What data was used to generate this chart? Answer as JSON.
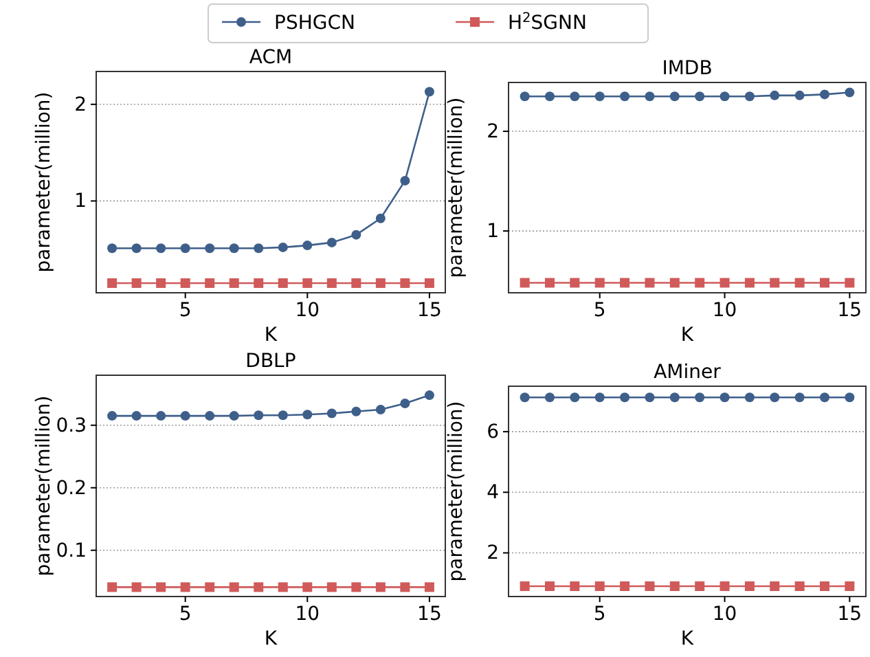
{
  "chart_data": [
    {
      "type": "line",
      "title": "ACM",
      "xlabel": "K",
      "ylabel": "parameter(million)",
      "x": [
        2,
        3,
        4,
        5,
        6,
        7,
        8,
        9,
        10,
        11,
        12,
        13,
        14,
        15
      ],
      "xlim": [
        1.35,
        15.65
      ],
      "xticks": [
        5,
        10,
        15
      ],
      "ylim": [
        0.05,
        2.34
      ],
      "yticks": [
        1,
        2
      ],
      "grid": "y",
      "legend": "top",
      "series": [
        {
          "name": "PSHGCN",
          "color": "#3e5f8a",
          "marker": "circle",
          "values": [
            0.51,
            0.51,
            0.51,
            0.51,
            0.51,
            0.51,
            0.51,
            0.52,
            0.54,
            0.57,
            0.65,
            0.82,
            1.21,
            2.13
          ]
        },
        {
          "name": "H$^{2}$SGNN",
          "color": "#d05a5a",
          "marker": "square",
          "values": [
            0.15,
            0.15,
            0.15,
            0.15,
            0.15,
            0.15,
            0.15,
            0.15,
            0.15,
            0.15,
            0.15,
            0.15,
            0.15,
            0.15
          ]
        }
      ]
    },
    {
      "type": "line",
      "title": "IMDB",
      "xlabel": "K",
      "ylabel": "parameter(million)",
      "x": [
        2,
        3,
        4,
        5,
        6,
        7,
        8,
        9,
        10,
        11,
        12,
        13,
        14,
        15
      ],
      "xlim": [
        1.35,
        15.65
      ],
      "xticks": [
        5,
        10,
        15
      ],
      "ylim": [
        0.38,
        2.49
      ],
      "yticks": [
        1,
        2
      ],
      "grid": "y",
      "series": [
        {
          "color": "#3e5f8a",
          "marker": "circle",
          "values": [
            2.35,
            2.35,
            2.35,
            2.35,
            2.35,
            2.35,
            2.35,
            2.35,
            2.35,
            2.35,
            2.36,
            2.36,
            2.37,
            2.39
          ]
        },
        {
          "color": "#d05a5a",
          "marker": "square",
          "values": [
            0.48,
            0.48,
            0.48,
            0.48,
            0.48,
            0.48,
            0.48,
            0.48,
            0.48,
            0.48,
            0.48,
            0.48,
            0.48,
            0.48
          ]
        }
      ]
    },
    {
      "type": "line",
      "title": "DBLP",
      "xlabel": "K",
      "ylabel": "parameter(million)",
      "x": [
        2,
        3,
        4,
        5,
        6,
        7,
        8,
        9,
        10,
        11,
        12,
        13,
        14,
        15
      ],
      "xlim": [
        1.35,
        15.65
      ],
      "xticks": [
        5,
        10,
        15
      ],
      "ylim": [
        0.026,
        0.38
      ],
      "yticks": [
        0.1,
        0.2,
        0.3
      ],
      "grid": "y",
      "series": [
        {
          "color": "#3e5f8a",
          "marker": "circle",
          "values": [
            0.315,
            0.315,
            0.315,
            0.315,
            0.315,
            0.315,
            0.316,
            0.316,
            0.317,
            0.319,
            0.322,
            0.325,
            0.335,
            0.348
          ]
        },
        {
          "color": "#d05a5a",
          "marker": "square",
          "values": [
            0.041,
            0.041,
            0.041,
            0.041,
            0.041,
            0.041,
            0.041,
            0.041,
            0.041,
            0.041,
            0.041,
            0.041,
            0.041,
            0.041
          ]
        }
      ]
    },
    {
      "type": "line",
      "title": "AMiner",
      "xlabel": "K",
      "ylabel": "parameter(million)",
      "x": [
        2,
        3,
        4,
        5,
        6,
        7,
        8,
        9,
        10,
        11,
        12,
        13,
        14,
        15
      ],
      "xlim": [
        1.35,
        15.65
      ],
      "xticks": [
        5,
        10,
        15
      ],
      "ylim": [
        0.56,
        7.5
      ],
      "yticks": [
        2,
        4,
        6
      ],
      "grid": "y",
      "series": [
        {
          "color": "#3e5f8a",
          "marker": "circle",
          "values": [
            7.13,
            7.13,
            7.13,
            7.13,
            7.13,
            7.13,
            7.13,
            7.13,
            7.13,
            7.13,
            7.13,
            7.13,
            7.13,
            7.13
          ]
        },
        {
          "color": "#d05a5a",
          "marker": "square",
          "values": [
            0.9,
            0.9,
            0.9,
            0.9,
            0.9,
            0.9,
            0.9,
            0.9,
            0.9,
            0.9,
            0.9,
            0.9,
            0.9,
            0.9
          ]
        }
      ]
    }
  ]
}
